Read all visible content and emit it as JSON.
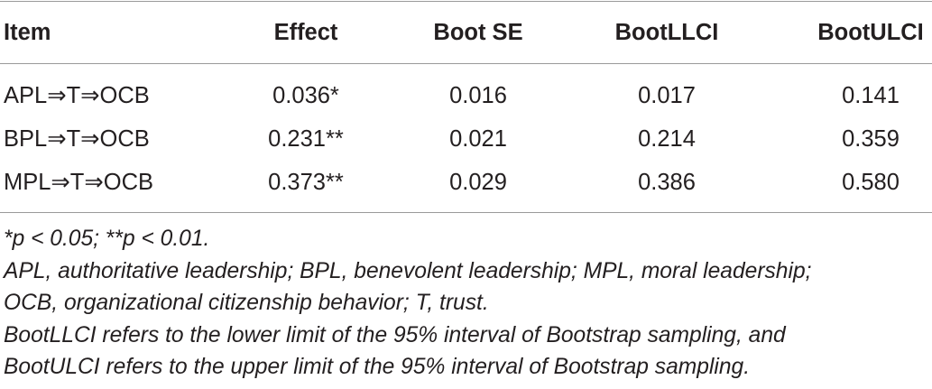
{
  "table": {
    "columns": [
      "Item",
      "Effect",
      "Boot SE",
      "BootLLCI",
      "BootULCI"
    ],
    "rows": [
      [
        "APL⇒T⇒OCB",
        "0.036*",
        "0.016",
        "0.017",
        "0.141"
      ],
      [
        "BPL⇒T⇒OCB",
        "0.231**",
        "0.021",
        "0.214",
        "0.359"
      ],
      [
        "MPL⇒T⇒OCB",
        "0.373**",
        "0.029",
        "0.386",
        "0.580"
      ]
    ]
  },
  "notes": [
    "*p < 0.05; **p < 0.01.",
    "APL, authoritative leadership; BPL, benevolent leadership; MPL, moral leadership;",
    "OCB, organizational citizenship behavior; T, trust.",
    "BootLLCI refers to the lower limit of the 95% interval of Bootstrap sampling, and",
    "BootULCI refers to the upper limit of the 95% interval of Bootstrap sampling."
  ]
}
